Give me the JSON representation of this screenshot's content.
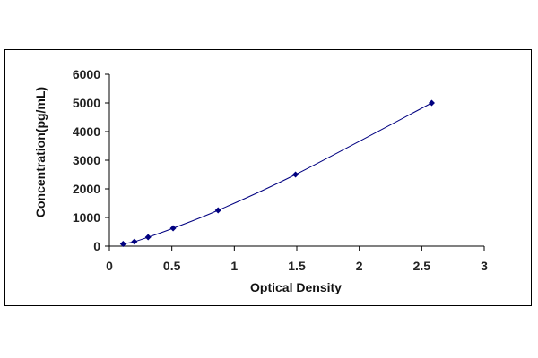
{
  "chart_data": {
    "type": "scatter",
    "title": "",
    "xlabel": "Optical Density",
    "ylabel": "Concentration(pg/mL)",
    "xlim": [
      0,
      3
    ],
    "ylim": [
      0,
      6000
    ],
    "x_ticks": [
      "0",
      "0.5",
      "1",
      "1.5",
      "2",
      "2.5",
      "3"
    ],
    "y_ticks": [
      "0",
      "1000",
      "2000",
      "3000",
      "4000",
      "5000",
      "6000"
    ],
    "grid": false,
    "legend": "none",
    "series": [
      {
        "x": [
          0.11,
          0.2,
          0.31,
          0.51,
          0.87,
          1.49,
          2.58
        ],
        "y": [
          78,
          156,
          312,
          625,
          1250,
          2500,
          5000
        ],
        "marker": "diamond",
        "trendline": "smooth curve",
        "color": "#000080"
      }
    ]
  }
}
